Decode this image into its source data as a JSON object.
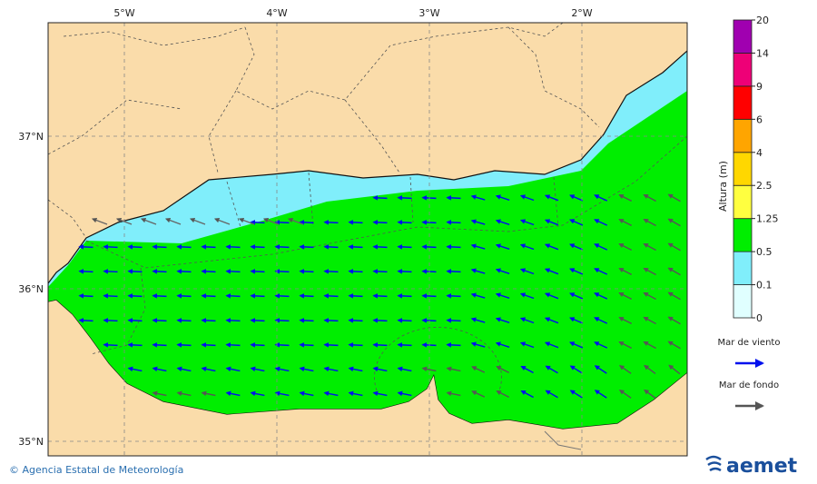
{
  "map": {
    "longitude_labels": [
      "5°W",
      "4°W",
      "3°W",
      "2°W"
    ],
    "latitude_labels": [
      "37°N",
      "36°N",
      "35°N"
    ],
    "land_color": "#fadcaa",
    "sea_color": "#00ee00",
    "shallow_color": "#80eefb"
  },
  "colorbar": {
    "title": "Altura (m)",
    "ticks": [
      "0",
      "0.1",
      "0.5",
      "1.25",
      "2.5",
      "4",
      "6",
      "9",
      "14",
      "20"
    ],
    "colors": [
      "#e0ffff",
      "#80eefb",
      "#00ee00",
      "#ffff40",
      "#ffd700",
      "#ffa500",
      "#ff0000",
      "#ee0077",
      "#a000b0"
    ]
  },
  "legend": [
    {
      "label": "Mar de viento",
      "color": "#0010ee"
    },
    {
      "label": "Mar de fondo",
      "color": "#555555"
    }
  ],
  "credit": "© Agencia Estatal de Meteorología",
  "logo": "aemet"
}
